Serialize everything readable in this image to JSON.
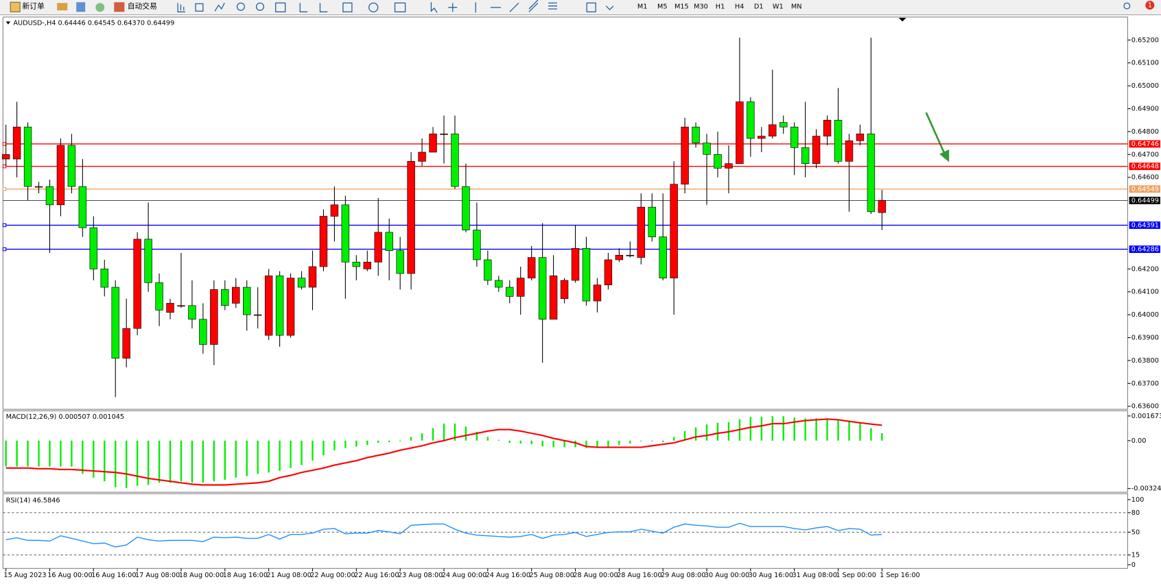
{
  "toolbar": {
    "new_order": "新订单",
    "auto_trading": "自动交易",
    "timeframes": [
      "M1",
      "M5",
      "M15",
      "M30",
      "H1",
      "H4",
      "D1",
      "W1",
      "MN"
    ],
    "notification_count": 1
  },
  "chart_data": [
    {
      "type": "candlestick",
      "title": "AUDUSD-,H4  0.64446 0.64545 0.64370 0.64499",
      "categories": [
        "15 Aug 2023",
        null,
        null,
        null,
        "16 Aug 00:00",
        null,
        null,
        null,
        "16 Aug 16:00",
        null,
        null,
        null,
        "17 Aug 08:00",
        null,
        null,
        null,
        "18 Aug 00:00",
        null,
        null,
        null,
        "18 Aug 16:00",
        null,
        null,
        null,
        "21 Aug 08:00",
        null,
        null,
        null,
        "22 Aug 00:00",
        null,
        null,
        null,
        "22 Aug 16:00",
        null,
        null,
        null,
        "23 Aug 08:00",
        null,
        null,
        null,
        "24 Aug 00:00",
        null,
        null,
        null,
        "24 Aug 16:00",
        null,
        null,
        null,
        "25 Aug 08:00",
        null,
        null,
        null,
        "28 Aug 00:00",
        null,
        null,
        null,
        "28 Aug 16:00",
        null,
        null,
        null,
        "29 Aug 08:00",
        null,
        null,
        null,
        "30 Aug 00:00",
        null,
        null,
        null,
        "30 Aug 16:00",
        null,
        null,
        null,
        "31 Aug 08:00",
        null,
        null,
        null,
        "1 Sep 00:00",
        null,
        null,
        null,
        "1 Sep 16:00"
      ],
      "open": [
        0.6468,
        0.6468,
        0.6482,
        0.6456,
        0.6456,
        0.6448,
        0.6474,
        0.6456,
        0.6438,
        0.642,
        0.6412,
        0.6381,
        0.6394,
        0.6433,
        0.6414,
        0.6401,
        0.6404,
        0.6404,
        0.6398,
        0.6387,
        0.6411,
        0.6405,
        0.6412,
        0.64,
        0.6391,
        0.6417,
        0.6391,
        0.6416,
        0.6412,
        0.6421,
        0.6443,
        0.6448,
        0.6423,
        0.642,
        0.6423,
        0.6436,
        0.6428,
        0.6418,
        0.6467,
        0.6471,
        0.6479,
        0.6479,
        0.6456,
        0.6437,
        0.6424,
        0.6415,
        0.6412,
        0.6408,
        0.6416,
        0.6425,
        0.6398,
        0.6407,
        0.6415,
        0.6429,
        0.6406,
        0.6413,
        0.6424,
        0.6426,
        0.6425,
        0.6447,
        0.6434,
        0.6416,
        0.6457,
        0.6482,
        0.6475,
        0.647,
        0.6464,
        0.6466,
        0.6493,
        0.6477,
        0.6478,
        0.6484,
        0.6482,
        0.6473,
        0.6466,
        0.6478,
        0.6485,
        0.6467,
        0.6476,
        0.6479,
        0.64446
      ],
      "high": [
        0.6483,
        0.6493,
        0.6484,
        0.6458,
        0.6459,
        0.6477,
        0.6479,
        0.6468,
        0.6443,
        0.6424,
        0.6415,
        0.6407,
        0.6436,
        0.6449,
        0.6418,
        0.6407,
        0.6427,
        0.6415,
        0.6405,
        0.6415,
        0.6415,
        0.6416,
        0.6415,
        0.6412,
        0.642,
        0.6419,
        0.6418,
        0.6419,
        0.6428,
        0.6446,
        0.6456,
        0.6452,
        0.6426,
        0.6428,
        0.6451,
        0.6442,
        0.6434,
        0.6471,
        0.6477,
        0.6482,
        0.6487,
        0.6487,
        0.6466,
        0.6449,
        0.6428,
        0.6417,
        0.6415,
        0.6421,
        0.643,
        0.644,
        0.6426,
        0.6416,
        0.6439,
        0.6434,
        0.6416,
        0.6427,
        0.6429,
        0.6432,
        0.6453,
        0.6453,
        0.6453,
        0.6467,
        0.6486,
        0.6484,
        0.6479,
        0.648,
        0.6474,
        0.6521,
        0.6495,
        0.6482,
        0.6507,
        0.6487,
        0.6484,
        0.6493,
        0.6481,
        0.6487,
        0.6499,
        0.6479,
        0.6483,
        0.6521,
        0.64545
      ],
      "low": [
        0.6465,
        0.646,
        0.645,
        0.6453,
        0.6427,
        0.6443,
        0.6453,
        0.6434,
        0.6415,
        0.6408,
        0.6364,
        0.6377,
        0.6391,
        0.641,
        0.6395,
        0.6398,
        0.6403,
        0.6394,
        0.6383,
        0.6378,
        0.6402,
        0.6403,
        0.6393,
        0.6394,
        0.6389,
        0.6386,
        0.639,
        0.6411,
        0.6402,
        0.6419,
        0.6432,
        0.6407,
        0.6415,
        0.6419,
        0.6417,
        0.6415,
        0.6411,
        0.6411,
        0.6465,
        0.6471,
        0.6466,
        0.6455,
        0.6436,
        0.6421,
        0.6413,
        0.641,
        0.6405,
        0.64,
        0.6415,
        0.6379,
        0.6398,
        0.6405,
        0.6414,
        0.6404,
        0.6401,
        0.6411,
        0.6423,
        0.6425,
        0.6422,
        0.6432,
        0.6415,
        0.64,
        0.6453,
        0.6473,
        0.6448,
        0.646,
        0.6453,
        0.6466,
        0.6469,
        0.6471,
        0.6477,
        0.6479,
        0.6461,
        0.646,
        0.6464,
        0.6474,
        0.6466,
        0.6445,
        0.6474,
        0.6444,
        0.6437
      ],
      "close": [
        0.647,
        0.6482,
        0.6456,
        0.6456,
        0.6448,
        0.6474,
        0.6456,
        0.6438,
        0.642,
        0.6412,
        0.6381,
        0.6394,
        0.6433,
        0.6414,
        0.6402,
        0.6405,
        0.6404,
        0.6398,
        0.6387,
        0.6411,
        0.6404,
        0.6412,
        0.64,
        0.64,
        0.6417,
        0.6391,
        0.6416,
        0.6412,
        0.6421,
        0.6443,
        0.6448,
        0.6423,
        0.6421,
        0.6423,
        0.6436,
        0.6428,
        0.6418,
        0.6467,
        0.6471,
        0.6479,
        0.6479,
        0.6456,
        0.6437,
        0.6424,
        0.6415,
        0.6412,
        0.6408,
        0.6416,
        0.6425,
        0.6398,
        0.6417,
        0.6415,
        0.6429,
        0.6406,
        0.6413,
        0.6424,
        0.6426,
        0.6426,
        0.6447,
        0.6434,
        0.6416,
        0.6457,
        0.6482,
        0.6475,
        0.647,
        0.6464,
        0.6466,
        0.6493,
        0.6477,
        0.6478,
        0.6483,
        0.6482,
        0.6473,
        0.6466,
        0.6478,
        0.6485,
        0.6467,
        0.6476,
        0.6479,
        0.6445,
        0.64499
      ],
      "up_color": "#ff0000",
      "down_color": "#00ee00",
      "hlines": [
        {
          "value": 0.64746,
          "color": "#ff0000"
        },
        {
          "value": 0.64648,
          "color": "#ff0000"
        },
        {
          "value": 0.64549,
          "color": "#f0a060"
        },
        {
          "value": 0.64391,
          "color": "#0000ff"
        },
        {
          "value": 0.64286,
          "color": "#0000ff"
        }
      ],
      "last_price": 0.64499,
      "ylim": [
        0.6359,
        0.65297
      ],
      "yticks": [
        {
          "value": 0.652,
          "label": "0.65200"
        },
        {
          "value": 0.651,
          "label": "0.65100"
        },
        {
          "value": 0.65,
          "label": "0.65000"
        },
        {
          "value": 0.649,
          "label": "0.64900"
        },
        {
          "value": 0.648,
          "label": "0.64800"
        },
        {
          "value": 0.647,
          "label": "0.64700"
        },
        {
          "value": 0.646,
          "label": "0.64600"
        },
        {
          "value": 0.642,
          "label": "0.64200"
        },
        {
          "value": 0.641,
          "label": "0.64100"
        },
        {
          "value": 0.64,
          "label": "0.64000"
        },
        {
          "value": 0.639,
          "label": "0.63900"
        },
        {
          "value": 0.638,
          "label": "0.63800"
        },
        {
          "value": 0.637,
          "label": "0.63700"
        },
        {
          "value": 0.636,
          "label": "0.63600"
        }
      ]
    },
    {
      "type": "macd",
      "title": "MACD(12,26,9) 0.000507 0.001045",
      "histogram": {
        "color": "#00ee00",
        "values": [
          -0.00176,
          -0.00176,
          -0.00176,
          -0.00176,
          -0.00176,
          -0.00176,
          -0.00176,
          -0.00226,
          -0.00251,
          -0.00276,
          -0.00316,
          -0.00322,
          -0.00306,
          -0.00301,
          -0.00286,
          -0.00286,
          -0.00276,
          -0.00286,
          -0.00286,
          -0.00276,
          -0.00266,
          -0.00251,
          -0.00241,
          -0.00226,
          -0.00216,
          -0.00206,
          -0.00186,
          -0.00166,
          -0.00136,
          -0.001,
          -0.00065,
          -0.0005,
          -0.0004,
          -0.0003,
          -0.00015,
          -0.0001,
          -5e-05,
          0.00025,
          0.0005,
          0.00085,
          0.00116,
          0.00116,
          0.00095,
          0.0006,
          0.00025,
          5e-05,
          -0.00015,
          -0.0002,
          -0.00025,
          -0.0004,
          -0.00045,
          -0.00045,
          -0.00045,
          -0.0005,
          -0.0005,
          -0.0004,
          -0.0003,
          -0.0002,
          -5e-05,
          -5e-05,
          -0.0001,
          0.00025,
          0.00065,
          0.0009,
          0.0011,
          0.00121,
          0.00126,
          0.00146,
          0.00161,
          0.00161,
          0.00166,
          0.00166,
          0.00156,
          0.00151,
          0.00151,
          0.00151,
          0.00146,
          0.00136,
          0.00126,
          0.00085,
          0.000507
        ]
      },
      "signal": {
        "color": "#ff0000",
        "values": [
          -0.00186,
          -0.00186,
          -0.00186,
          -0.00191,
          -0.00191,
          -0.00196,
          -0.00196,
          -0.00201,
          -0.00206,
          -0.00211,
          -0.00216,
          -0.00226,
          -0.00241,
          -0.00256,
          -0.00266,
          -0.00276,
          -0.00286,
          -0.00296,
          -0.00301,
          -0.00301,
          -0.00301,
          -0.00296,
          -0.00291,
          -0.00286,
          -0.00276,
          -0.00251,
          -0.00236,
          -0.00216,
          -0.00201,
          -0.00186,
          -0.00166,
          -0.00151,
          -0.00136,
          -0.00115,
          -0.001,
          -0.00085,
          -0.00065,
          -0.0005,
          -0.00035,
          -0.00015,
          0,
          0.0002,
          0.00035,
          0.0005,
          0.00065,
          0.00075,
          0.00075,
          0.00065,
          0.0005,
          0.00035,
          0.00015,
          0,
          -0.00015,
          -0.0004,
          -0.00045,
          -0.00045,
          -0.00045,
          -0.00045,
          -0.00045,
          -0.00035,
          -0.00025,
          -0.00015,
          5e-05,
          0.00025,
          0.00035,
          0.0005,
          0.0006,
          0.00075,
          0.0009,
          0.001,
          0.00115,
          0.00115,
          0.00126,
          0.00136,
          0.00141,
          0.00146,
          0.00141,
          0.00131,
          0.00121,
          0.00112,
          0.001045
        ]
      },
      "ylim": [
        -0.003249,
        0.001673
      ],
      "yticks": [
        0.001673,
        {
          "value": 0,
          "label": "0.00"
        },
        -0.003249
      ]
    },
    {
      "type": "rsi",
      "title": "RSI(14) 46.5846",
      "line": {
        "color": "#1e90ff",
        "values": [
          38.4,
          41.4,
          37.4,
          37.4,
          36.4,
          44.4,
          40.4,
          36.4,
          32.3,
          33.3,
          27.3,
          30.3,
          42.4,
          38.4,
          36.4,
          37.4,
          37.4,
          37.4,
          35.4,
          42.4,
          41.4,
          42.4,
          40.4,
          40.4,
          46.5,
          39.4,
          46.5,
          46.5,
          48.5,
          54.5,
          55.6,
          47.5,
          48.5,
          48.5,
          52.5,
          50.5,
          47.5,
          60.6,
          61.6,
          62.6,
          62.6,
          54.5,
          48.5,
          45.5,
          44.4,
          43.4,
          42.4,
          43.4,
          46.5,
          40.4,
          45.5,
          46.5,
          49.5,
          43.4,
          46.5,
          49.5,
          50.5,
          50.5,
          54.5,
          51.5,
          48.5,
          57.6,
          62.6,
          60.6,
          59.6,
          57.6,
          57.6,
          63.6,
          58.6,
          58.6,
          58.6,
          58.6,
          55.6,
          53.5,
          56.6,
          58.6,
          52.5,
          55.6,
          54.5,
          45.5,
          46.58
        ]
      },
      "ylim": [
        0,
        100
      ],
      "yticks": [
        100,
        80,
        50,
        15,
        0
      ]
    }
  ]
}
